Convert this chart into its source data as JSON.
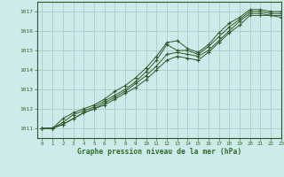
{
  "xlabel": "Graphe pression niveau de la mer (hPa)",
  "xlim": [
    -0.5,
    23
  ],
  "ylim": [
    1010.5,
    1017.5
  ],
  "yticks": [
    1011,
    1012,
    1013,
    1014,
    1015,
    1016,
    1017
  ],
  "xticks": [
    0,
    1,
    2,
    3,
    4,
    5,
    6,
    7,
    8,
    9,
    10,
    11,
    12,
    13,
    14,
    15,
    16,
    17,
    18,
    19,
    20,
    21,
    22,
    23
  ],
  "background_color": "#ceeaea",
  "grid_color": "#a8cccc",
  "line_color": "#2d5a27",
  "tick_color": "#2d6e27",
  "series": [
    [
      1011.0,
      1011.0,
      1011.3,
      1011.7,
      1011.9,
      1012.1,
      1012.4,
      1012.7,
      1013.0,
      1013.4,
      1013.9,
      1014.5,
      1015.3,
      1015.0,
      1015.0,
      1014.8,
      1015.2,
      1015.7,
      1016.2,
      1016.6,
      1017.0,
      1017.0,
      1016.9,
      1016.9
    ],
    [
      1011.0,
      1011.0,
      1011.5,
      1011.8,
      1012.0,
      1012.2,
      1012.5,
      1012.9,
      1013.2,
      1013.6,
      1014.1,
      1014.7,
      1015.4,
      1015.5,
      1015.1,
      1014.9,
      1015.3,
      1015.9,
      1016.4,
      1016.7,
      1017.1,
      1017.1,
      1017.0,
      1017.0
    ],
    [
      1011.0,
      1011.0,
      1011.2,
      1011.5,
      1011.8,
      1012.0,
      1012.3,
      1012.6,
      1012.9,
      1013.3,
      1013.7,
      1014.2,
      1014.8,
      1014.9,
      1014.8,
      1014.7,
      1015.0,
      1015.5,
      1016.0,
      1016.5,
      1016.9,
      1016.9,
      1016.8,
      1016.8
    ],
    [
      1011.0,
      1011.0,
      1011.2,
      1011.5,
      1011.8,
      1012.0,
      1012.2,
      1012.5,
      1012.8,
      1013.1,
      1013.5,
      1014.0,
      1014.5,
      1014.7,
      1014.6,
      1014.5,
      1014.9,
      1015.4,
      1015.9,
      1016.3,
      1016.8,
      1016.8,
      1016.8,
      1016.7
    ]
  ]
}
